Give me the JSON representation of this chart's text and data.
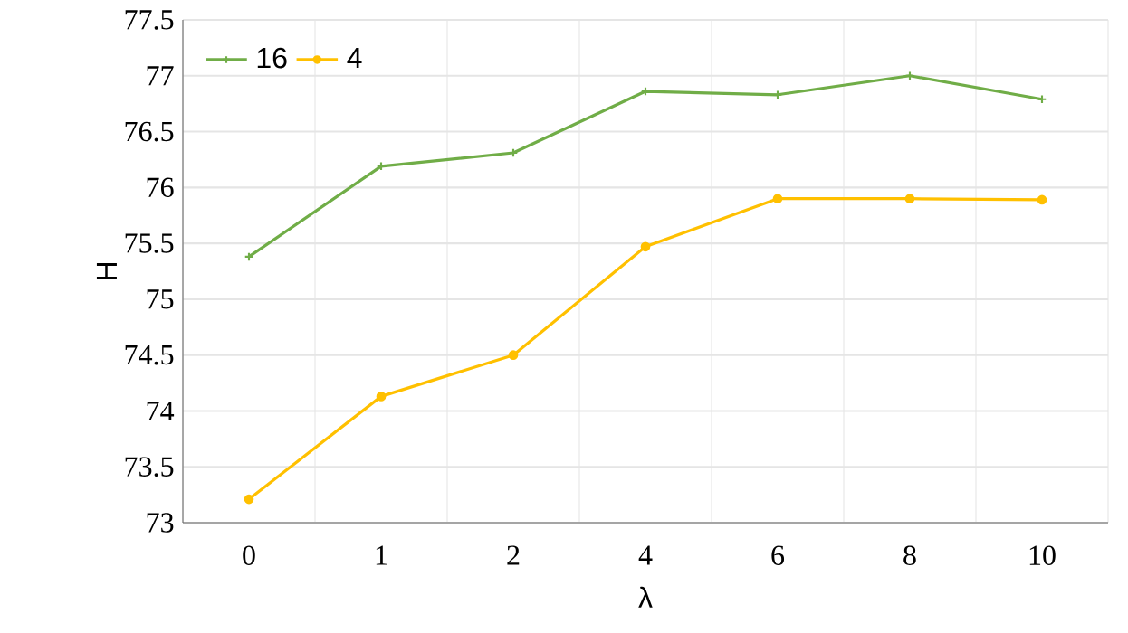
{
  "chart_data": {
    "type": "line",
    "xlabel": "λ",
    "ylabel": "H",
    "categories": [
      "0",
      "1",
      "2",
      "4",
      "6",
      "8",
      "10"
    ],
    "series": [
      {
        "name": "16",
        "color": "#70ad47",
        "marker": "cross",
        "values": [
          75.38,
          76.19,
          76.31,
          76.86,
          76.83,
          77.0,
          76.79
        ]
      },
      {
        "name": "4",
        "color": "#ffc000",
        "marker": "circle",
        "values": [
          73.21,
          74.13,
          74.5,
          75.47,
          75.9,
          75.9,
          75.89
        ]
      }
    ],
    "ylim": [
      73,
      77.5
    ],
    "yticks": [
      73,
      73.5,
      74,
      74.5,
      75,
      75.5,
      76,
      76.5,
      77,
      77.5
    ],
    "grid": true,
    "legend": "top left"
  }
}
